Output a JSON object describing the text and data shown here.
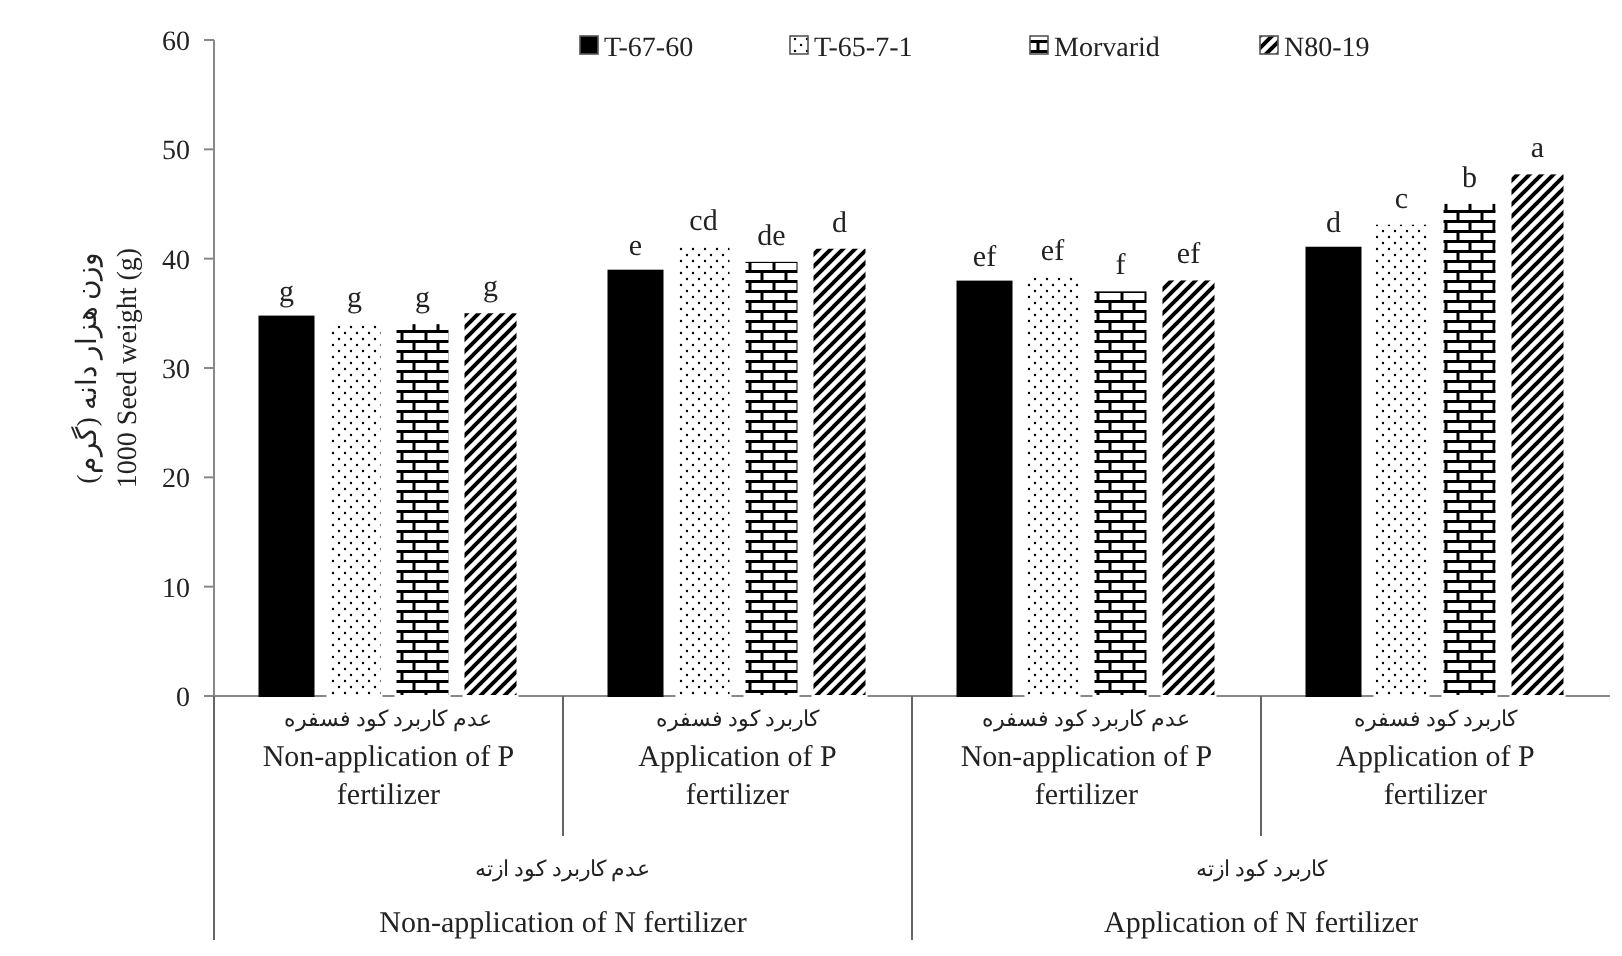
{
  "chart_data": {
    "type": "bar",
    "ylabel": "وزن هزار دانه (گرم)\n1000 Seed weight (g)",
    "categories": [
      "عدم کاربرد کود فسفره\nNon-application of P\nfertilizer",
      "کاربرد کود فسفره\nApplication of P\nfertilizer",
      "عدم کاربرد کود فسفره\nNon-application of P\nfertilizer",
      "کاربرد کود فسفره\nApplication of P\nfertilizer"
    ],
    "series": [
      {
        "name": "T-67-60",
        "color": "#000000",
        "values": [
          34.7,
          38.9,
          37.9,
          41.0
        ],
        "value_labels": [
          "g",
          "e",
          "ef",
          "d"
        ]
      },
      {
        "name": "T-65-7-1",
        "color": "#ffffff",
        "values": [
          34.1,
          41.2,
          38.4,
          43.2
        ],
        "value_labels": [
          "g",
          "cd",
          "ef",
          "c"
        ]
      },
      {
        "name": "Morvarid",
        "color": "#ffffff",
        "values": [
          34.1,
          39.8,
          37.1,
          45.1
        ],
        "value_labels": [
          "g",
          "de",
          "f",
          "b"
        ]
      },
      {
        "name": "N80-19",
        "color": "#ffffff",
        "values": [
          35.1,
          41.0,
          38.1,
          47.8
        ],
        "value_labels": [
          "g",
          "d",
          "ef",
          "a"
        ]
      }
    ],
    "annotations": [
      "عدم کاربرد کود ازته\nNon-application of N fertilizer",
      "کاربرد کود ازته\nApplication of N fertilizer"
    ],
    "ylim": [
      0,
      60
    ],
    "yticks": [
      0,
      10,
      20,
      30,
      40,
      50,
      60
    ],
    "grid": false,
    "legend": "top"
  }
}
